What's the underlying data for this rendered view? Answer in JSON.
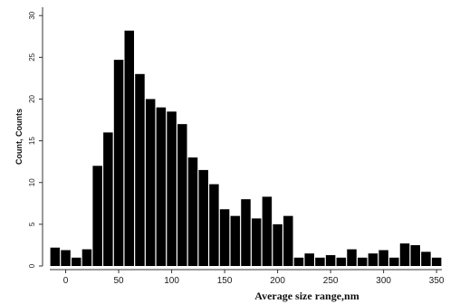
{
  "chart_data": {
    "type": "bar",
    "title": "",
    "xlabel": "Average size range,nm",
    "ylabel": "Count, Counts",
    "xlim": [
      -15,
      355
    ],
    "ylim": [
      0,
      31
    ],
    "xticks": [
      0,
      50,
      100,
      150,
      200,
      250,
      300,
      350
    ],
    "yticks": [
      0,
      5,
      10,
      15,
      20,
      25,
      30
    ],
    "bin_width": 10,
    "grid": false,
    "bar_color": "#000000",
    "x": [
      -10,
      0,
      10,
      20,
      30,
      40,
      50,
      60,
      70,
      80,
      90,
      100,
      110,
      120,
      130,
      140,
      150,
      160,
      170,
      180,
      190,
      200,
      210,
      220,
      230,
      240,
      250,
      260,
      270,
      280,
      290,
      300,
      310,
      320,
      330,
      340,
      350
    ],
    "values": [
      2.2,
      1.9,
      1.0,
      2.0,
      12.0,
      16.0,
      24.7,
      28.2,
      23.0,
      20.0,
      19.0,
      18.5,
      17.0,
      13.0,
      11.5,
      9.8,
      6.8,
      6.0,
      8.0,
      5.7,
      8.3,
      5.0,
      6.0,
      1.0,
      1.5,
      1.0,
      1.3,
      1.0,
      2.0,
      1.0,
      1.5,
      1.9,
      1.0,
      2.7,
      2.5,
      1.7,
      1.0
    ]
  }
}
